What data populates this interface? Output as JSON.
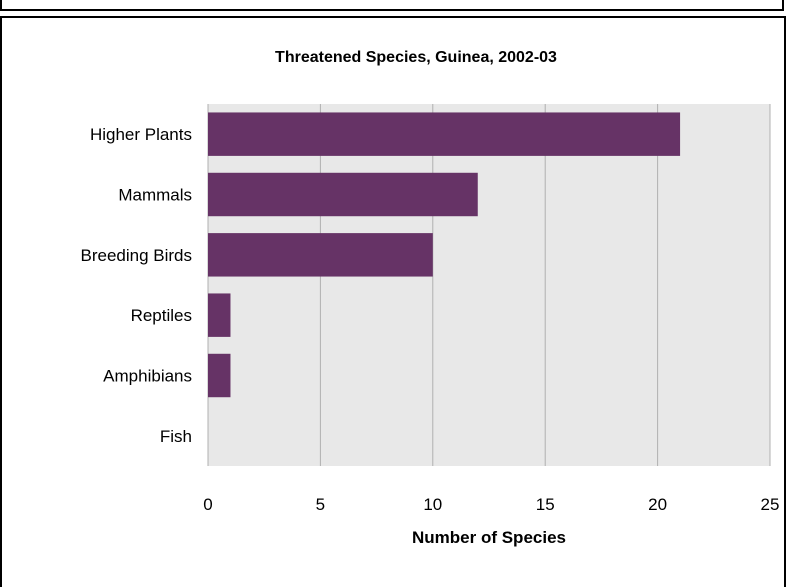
{
  "chart_data": {
    "type": "bar",
    "orientation": "horizontal",
    "title": "Threatened Species, Guinea, 2002-03",
    "xlabel": "Number of Species",
    "ylabel": "",
    "categories": [
      "Higher Plants",
      "Mammals",
      "Breeding Birds",
      "Reptiles",
      "Amphibians",
      "Fish"
    ],
    "values": [
      21,
      12,
      10,
      1,
      1,
      0
    ],
    "xlim": [
      0,
      25
    ],
    "xticks": [
      0,
      5,
      10,
      15,
      20,
      25
    ],
    "grid": true,
    "legend": "none",
    "colors": {
      "bar": "#663366",
      "plot_background": "#e8e8e8",
      "gridline": "#b0b0b0"
    }
  }
}
